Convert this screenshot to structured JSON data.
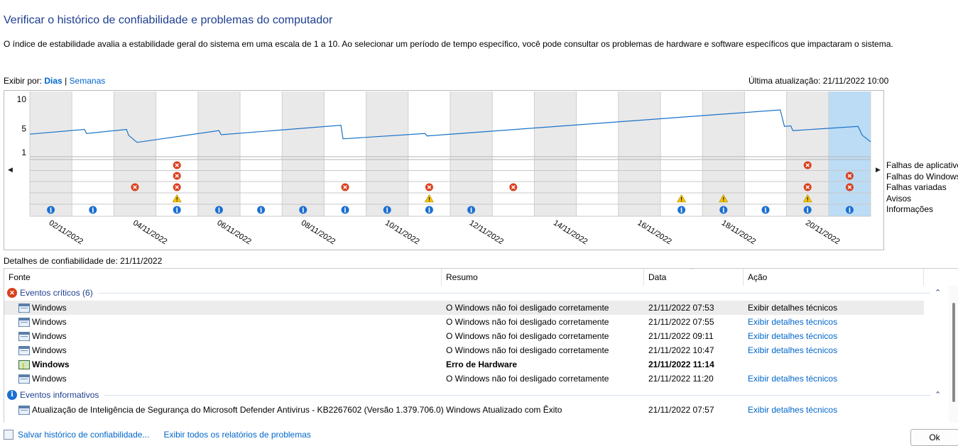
{
  "header": {
    "title": "Verificar o histórico de confiabilidade e problemas do computador",
    "description": "O índice de estabilidade avalia a estabilidade geral do sistema em uma escala de 1 a 10. Ao selecionar um período de tempo específico, você pode consultar os problemas de hardware e software específicos que impactaram o sistema."
  },
  "view": {
    "label": "Exibir por:",
    "days": "Dias",
    "separator": "|",
    "weeks": "Semanas",
    "last_update": "Última atualização: 21/11/2022 10:00"
  },
  "chart_data": {
    "type": "line",
    "y_ticks": [
      "10",
      "5",
      "1"
    ],
    "ylim": [
      1,
      10
    ],
    "columns": 20,
    "selected_column": 19,
    "x_labels": [
      "02/11/2022",
      "04/11/2022",
      "06/11/2022",
      "08/11/2022",
      "10/11/2022",
      "12/11/2022",
      "14/11/2022",
      "16/11/2022",
      "18/11/2022",
      "20/11/2022"
    ],
    "x_label_columns": [
      1,
      3,
      5,
      7,
      9,
      11,
      13,
      15,
      17,
      19
    ],
    "stability_index": [
      [
        0.0,
        4.1
      ],
      [
        1.3,
        4.9
      ],
      [
        1.35,
        4.2
      ],
      [
        2.3,
        4.9
      ],
      [
        2.35,
        3.9
      ],
      [
        2.55,
        2.7
      ],
      [
        4.5,
        4.7
      ],
      [
        4.55,
        4.0
      ],
      [
        7.4,
        5.6
      ],
      [
        7.45,
        3.3
      ],
      [
        9.4,
        4.2
      ],
      [
        9.45,
        3.8
      ],
      [
        17.85,
        8.2
      ],
      [
        17.95,
        5.4
      ],
      [
        18.1,
        5.5
      ],
      [
        18.15,
        4.7
      ],
      [
        19.7,
        5.4
      ],
      [
        19.8,
        3.9
      ],
      [
        20.0,
        2.8
      ]
    ],
    "rows": [
      "Falhas de aplicativo",
      "Falhas do Windows",
      "Falhas variadas",
      "Avisos",
      "Informações"
    ],
    "events": {
      "Falhas de aplicativo": [
        3,
        18
      ],
      "Falhas do Windows": [
        3,
        19
      ],
      "Falhas variadas": [
        2,
        3,
        7,
        9,
        11,
        18,
        19
      ],
      "Avisos": [
        3,
        9,
        15,
        16,
        18
      ],
      "Informações": [
        0,
        1,
        3,
        4,
        5,
        6,
        7,
        8,
        9,
        10,
        15,
        16,
        17,
        18,
        19
      ]
    },
    "colors": {
      "line": "#1a73c8",
      "shade": "#e9e9e9",
      "selected": "#bcdcf5",
      "critical": "#d9401e",
      "warning": "#f5c400",
      "info": "#1b6fd1"
    }
  },
  "details": {
    "title": "Detalhes de confiabilidade de: 21/11/2022",
    "columns": {
      "source": "Fonte",
      "summary": "Resumo",
      "date": "Data",
      "action": "Ação"
    },
    "groups": {
      "critical": "Eventos críticos (6)",
      "info": "Eventos informativos"
    },
    "critical_rows": [
      {
        "source": "Windows",
        "summary": "O Windows não foi desligado corretamente",
        "date": "21/11/2022 07:53",
        "action": "Exibir detalhes técnicos",
        "icon": "windows-window-icon"
      },
      {
        "source": "Windows",
        "summary": "O Windows não foi desligado corretamente",
        "date": "21/11/2022 07:55",
        "action": "Exibir detalhes técnicos",
        "icon": "windows-window-icon"
      },
      {
        "source": "Windows",
        "summary": "O Windows não foi desligado corretamente",
        "date": "21/11/2022 09:11",
        "action": "Exibir detalhes técnicos",
        "icon": "windows-window-icon"
      },
      {
        "source": "Windows",
        "summary": "O Windows não foi desligado corretamente",
        "date": "21/11/2022 10:47",
        "action": "Exibir detalhes técnicos",
        "icon": "windows-window-icon"
      },
      {
        "source": "Windows",
        "summary": "Erro de Hardware",
        "date": "21/11/2022 11:14",
        "action": "",
        "icon": "hardware-error-icon"
      },
      {
        "source": "Windows",
        "summary": "O Windows não foi desligado corretamente",
        "date": "21/11/2022 11:20",
        "action": "Exibir detalhes técnicos",
        "icon": "windows-window-icon"
      }
    ],
    "info_rows": [
      {
        "source": "Atualização de Inteligência de Segurança do Microsoft Defender Antivirus - KB2267602 (Versão 1.379.706.0)",
        "summary": "Windows Atualizado com Êxito",
        "date": "21/11/2022 07:57",
        "action": "Exibir detalhes técnicos",
        "icon": "windows-window-icon"
      }
    ]
  },
  "footer": {
    "save": "Salvar histórico de confiabilidade...",
    "view_all": "Exibir todos os relatórios de problemas",
    "ok": "Ok"
  }
}
